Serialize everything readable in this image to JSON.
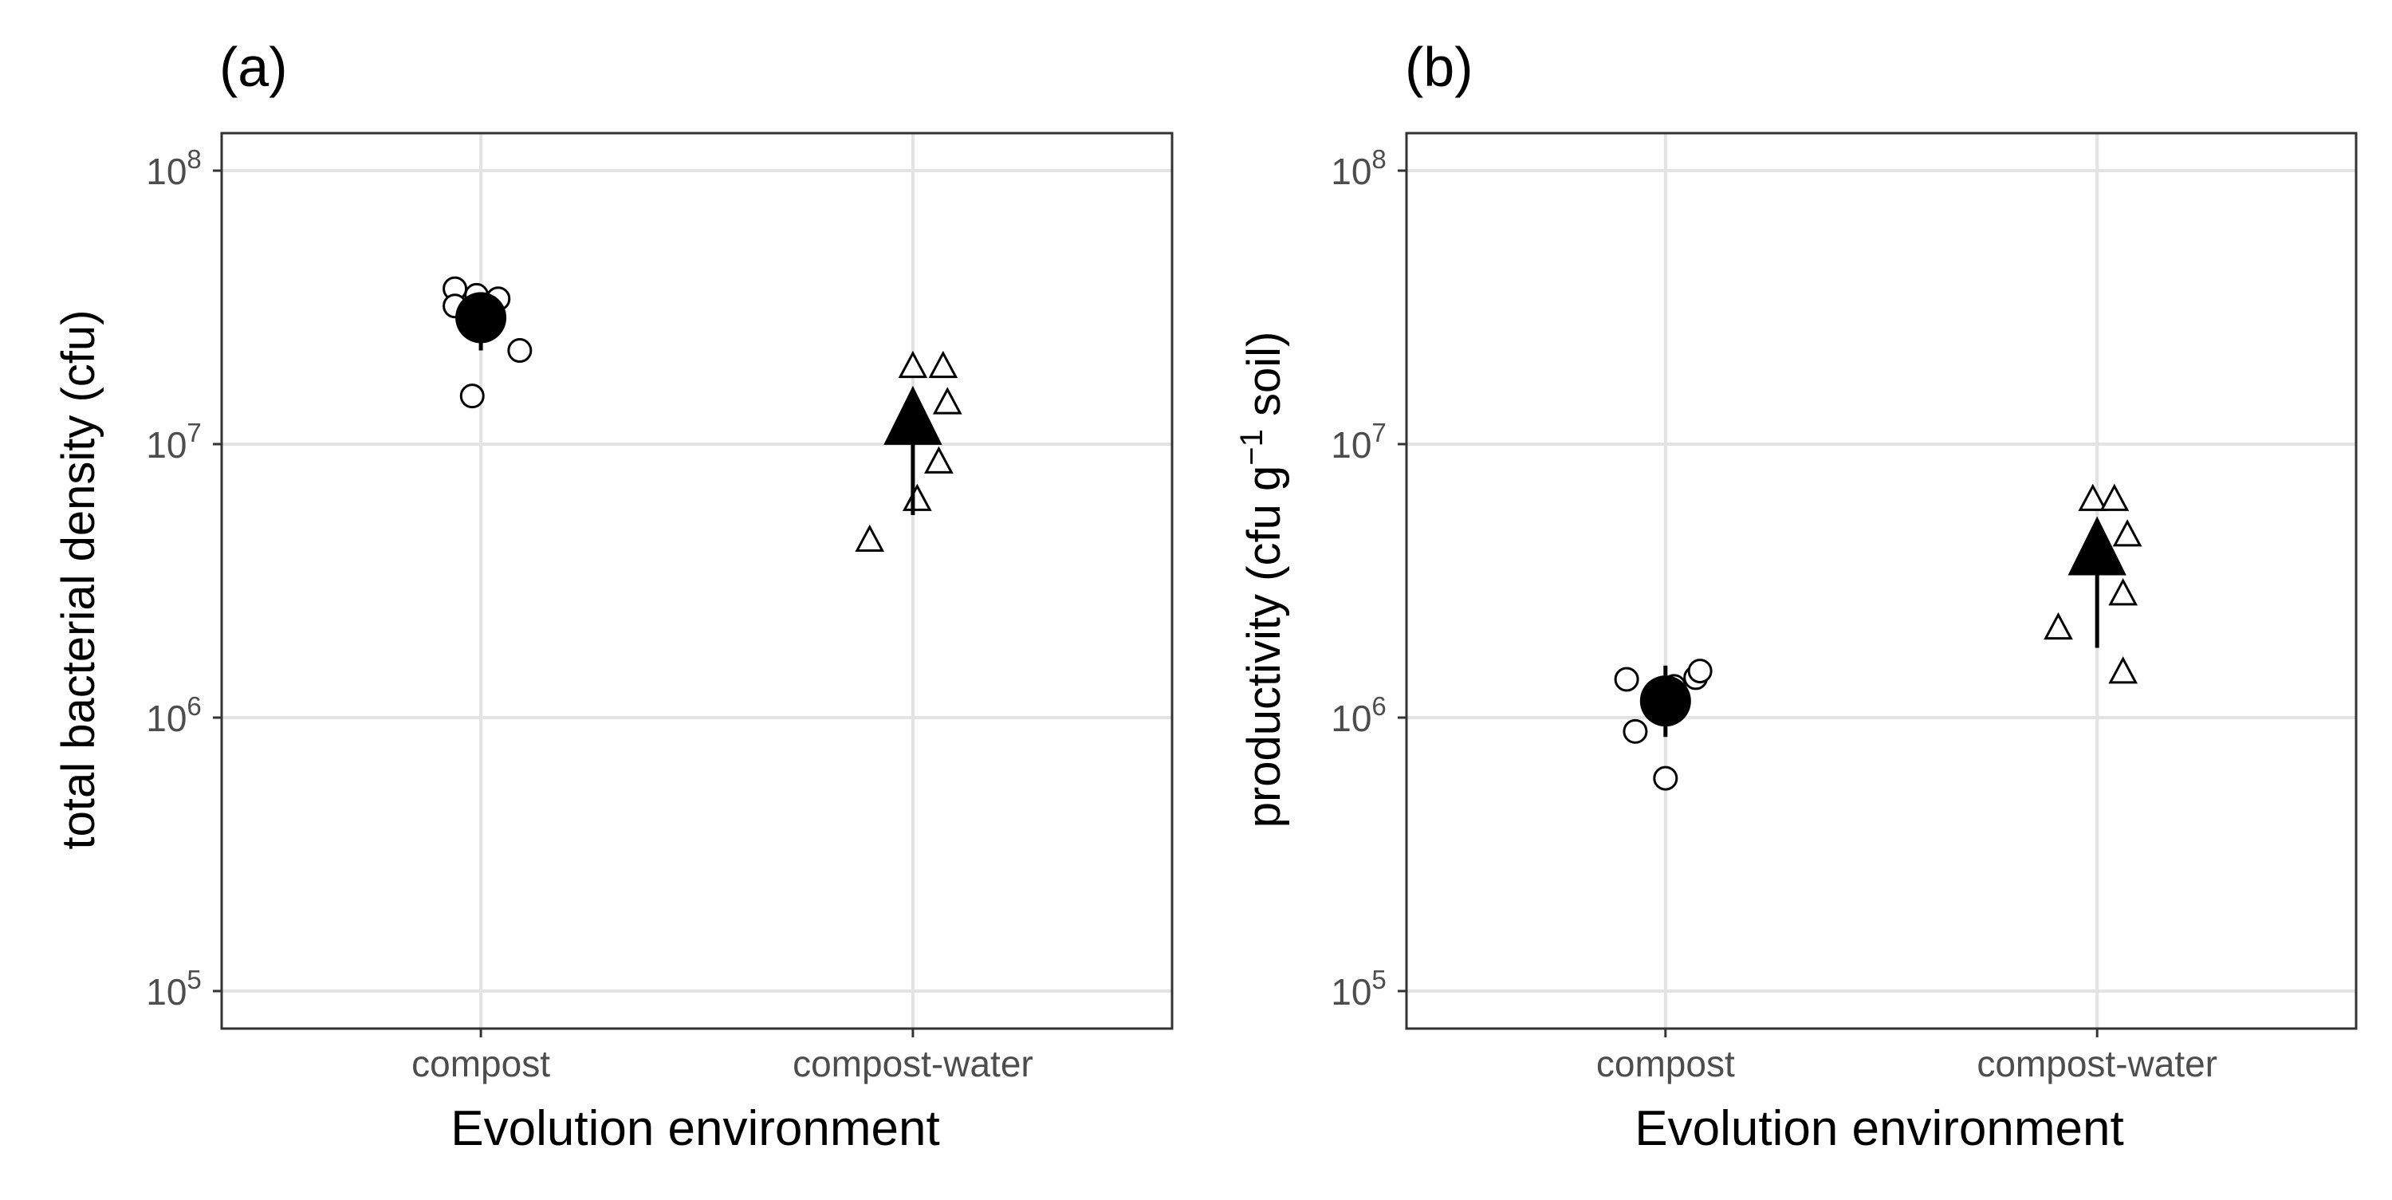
{
  "chart_data": [
    {
      "type": "scatter",
      "panel_label": "(a)",
      "xlabel": "Evolution environment",
      "ylabel": "total bacterial density (cfu)",
      "y_scale": "log10",
      "ylim": [
        100000,
        100000000
      ],
      "y_ticks": [
        {
          "value": 100000,
          "base": "10",
          "exp": "5"
        },
        {
          "value": 1000000,
          "base": "10",
          "exp": "6"
        },
        {
          "value": 10000000,
          "base": "10",
          "exp": "7"
        },
        {
          "value": 100000000,
          "base": "10",
          "exp": "8"
        }
      ],
      "categories": [
        "compost",
        "compost-water"
      ],
      "grid": true,
      "groups": [
        {
          "category": "compost",
          "shape": "circle",
          "mean": 29000000,
          "error": [
            22000000,
            34000000
          ],
          "points": [
            {
              "offset": -0.06,
              "value": 37000000
            },
            {
              "offset": -0.06,
              "value": 32000000
            },
            {
              "offset": -0.01,
              "value": 35000000
            },
            {
              "offset": 0.04,
              "value": 34000000
            },
            {
              "offset": 0.09,
              "value": 22000000
            },
            {
              "offset": -0.02,
              "value": 15000000
            }
          ]
        },
        {
          "category": "compost-water",
          "shape": "triangle",
          "mean": 12000000,
          "error": [
            5500000,
            15000000
          ],
          "points": [
            {
              "offset": 0.0,
              "value": 19000000
            },
            {
              "offset": 0.07,
              "value": 19000000
            },
            {
              "offset": 0.08,
              "value": 14000000
            },
            {
              "offset": 0.06,
              "value": 8500000
            },
            {
              "offset": 0.01,
              "value": 6200000
            },
            {
              "offset": -0.1,
              "value": 4400000
            }
          ]
        }
      ]
    },
    {
      "type": "scatter",
      "panel_label": "(b)",
      "xlabel": "Evolution environment",
      "ylabel_main": "productivity (cfu g",
      "ylabel_sup": "−1",
      "ylabel_tail": " soil)",
      "y_scale": "log10",
      "ylim": [
        100000,
        100000000
      ],
      "y_ticks": [
        {
          "value": 100000,
          "base": "10",
          "exp": "5"
        },
        {
          "value": 1000000,
          "base": "10",
          "exp": "6"
        },
        {
          "value": 10000000,
          "base": "10",
          "exp": "7"
        },
        {
          "value": 100000000,
          "base": "10",
          "exp": "8"
        }
      ],
      "categories": [
        "compost",
        "compost-water"
      ],
      "grid": true,
      "groups": [
        {
          "category": "compost",
          "shape": "circle",
          "mean": 1150000,
          "error": [
            850000,
            1550000
          ],
          "points": [
            {
              "offset": -0.09,
              "value": 1380000
            },
            {
              "offset": 0.02,
              "value": 1300000
            },
            {
              "offset": 0.07,
              "value": 1400000
            },
            {
              "offset": 0.08,
              "value": 1480000
            },
            {
              "offset": -0.07,
              "value": 890000
            },
            {
              "offset": 0.0,
              "value": 600000
            }
          ]
        },
        {
          "category": "compost-water",
          "shape": "triangle",
          "mean": 4000000,
          "error": [
            1800000,
            5200000
          ],
          "points": [
            {
              "offset": -0.01,
              "value": 6200000
            },
            {
              "offset": 0.04,
              "value": 6200000
            },
            {
              "offset": 0.07,
              "value": 4600000
            },
            {
              "offset": 0.06,
              "value": 2800000
            },
            {
              "offset": -0.09,
              "value": 2100000
            },
            {
              "offset": 0.06,
              "value": 1450000
            }
          ]
        }
      ]
    }
  ]
}
